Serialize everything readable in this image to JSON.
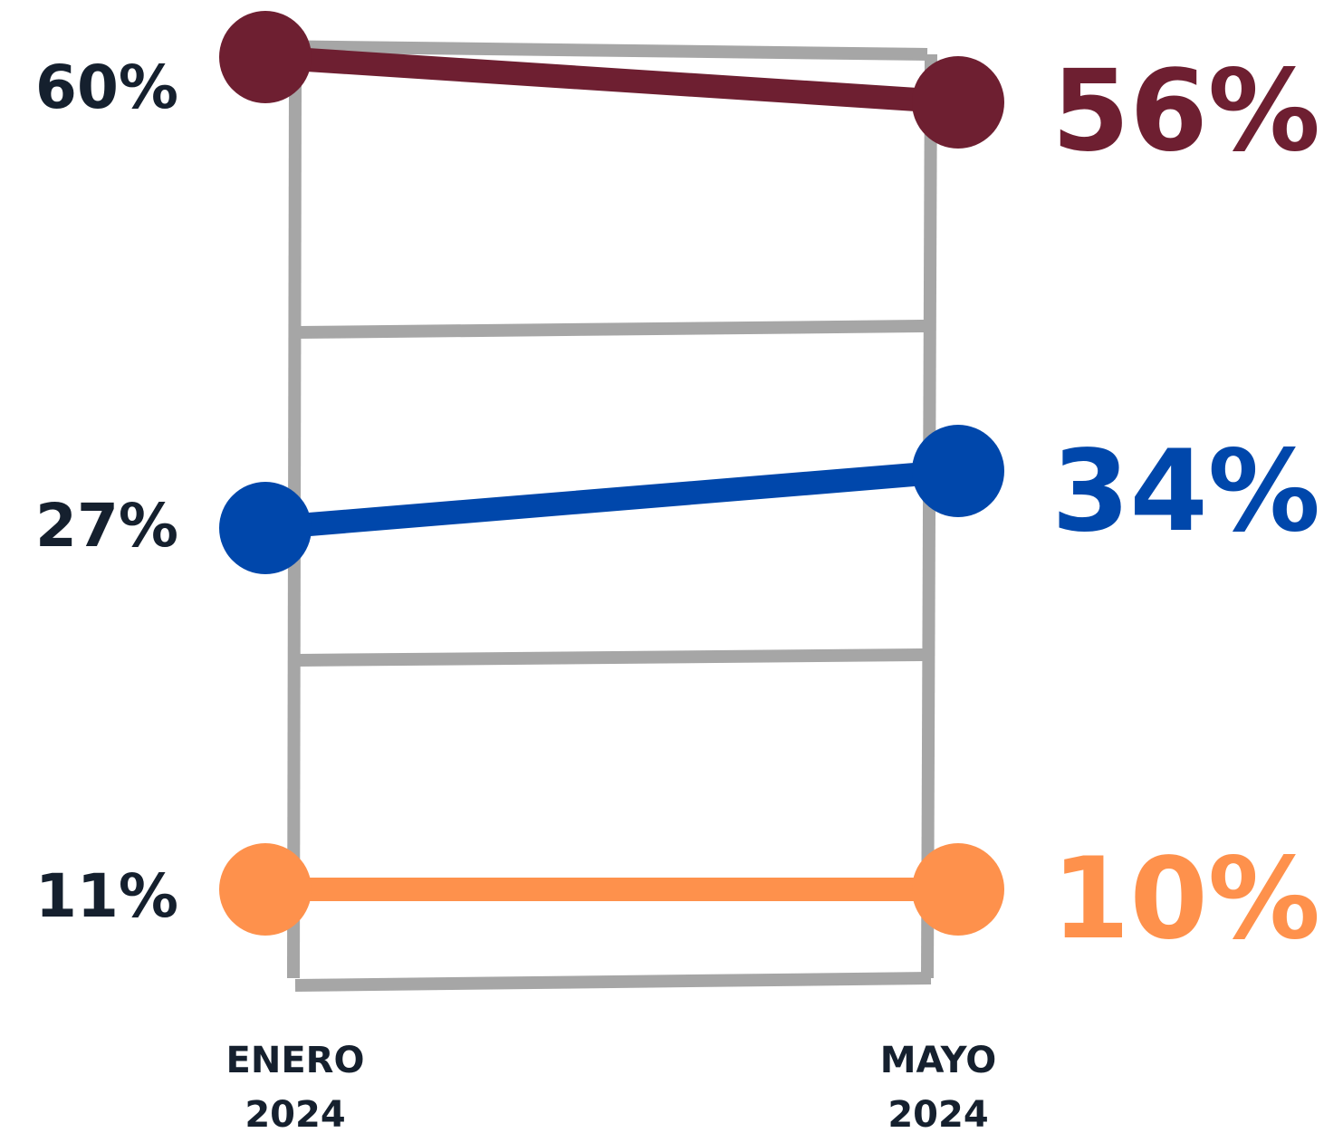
{
  "chart_data": {
    "type": "line",
    "categories": [
      [
        "ENERO",
        "2024"
      ],
      [
        "MAYO",
        "2024"
      ]
    ],
    "series": [
      {
        "values": [
          60,
          56
        ],
        "labels": [
          "60%",
          "56%"
        ],
        "color": "#6e1f31"
      },
      {
        "values": [
          27,
          34
        ],
        "labels": [
          "27%",
          "34%"
        ],
        "color": "#0047ab"
      },
      {
        "values": [
          11,
          10
        ],
        "labels": [
          "11%",
          "10%"
        ],
        "color": "#fe914c"
      }
    ],
    "label_color": "#15202e",
    "frame_color": "#a6a6a6",
    "title": "",
    "xlabel": "",
    "ylabel": "",
    "grid": true,
    "legend": false
  }
}
